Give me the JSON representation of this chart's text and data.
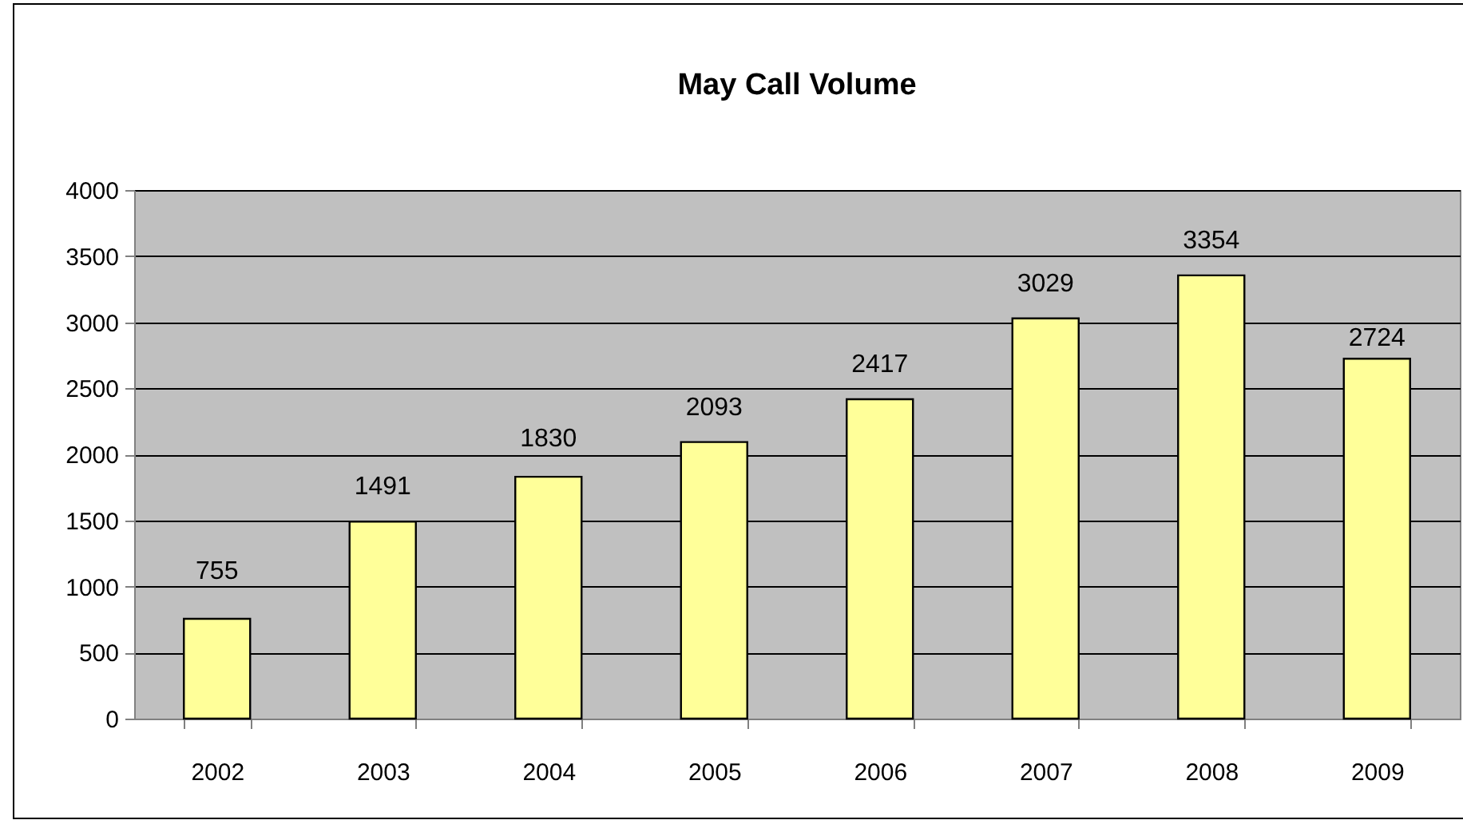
{
  "chart_data": {
    "type": "bar",
    "title": "May Call Volume",
    "categories": [
      "2002",
      "2003",
      "2004",
      "2005",
      "2006",
      "2007",
      "2008",
      "2009"
    ],
    "values": [
      755,
      1491,
      1830,
      2093,
      2417,
      3029,
      3354,
      2724
    ],
    "color": "#ffff99",
    "ylim": [
      0,
      4000
    ],
    "yticks": [
      0,
      500,
      1000,
      1500,
      2000,
      2500,
      3000,
      3500,
      4000
    ],
    "grid": "y",
    "data_labels": true
  }
}
